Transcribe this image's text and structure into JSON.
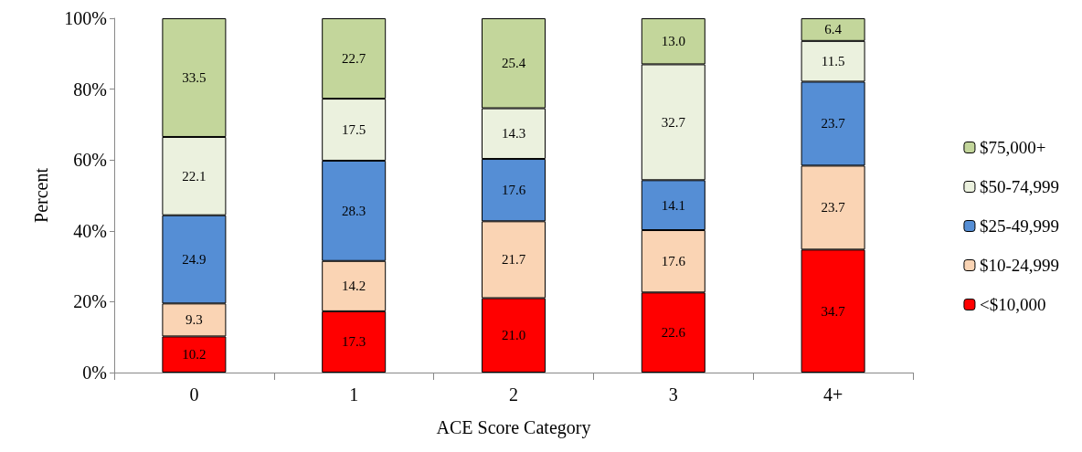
{
  "chart_data": {
    "type": "bar",
    "stacked": true,
    "xlabel": "ACE Score Category",
    "ylabel": "Percent",
    "categories": [
      "0",
      "1",
      "2",
      "3",
      "4+"
    ],
    "ylim": [
      0,
      100
    ],
    "yticks": [
      {
        "value": 0,
        "label": "0%"
      },
      {
        "value": 20,
        "label": "20%"
      },
      {
        "value": 40,
        "label": "40%"
      },
      {
        "value": 60,
        "label": "60%"
      },
      {
        "value": 80,
        "label": "80%"
      },
      {
        "value": 100,
        "label": "100%"
      }
    ],
    "grid": false,
    "legend": "right",
    "series": [
      {
        "name": "<$10,000",
        "color": "#ff0000",
        "values": [
          10.2,
          17.3,
          21.0,
          22.6,
          34.7
        ],
        "value_labels": [
          "10.2",
          "17.3",
          "21.0",
          "22.6",
          "34.7"
        ]
      },
      {
        "name": "$10-24,999",
        "color": "#fad4b4",
        "values": [
          9.3,
          14.2,
          21.7,
          17.6,
          23.7
        ],
        "value_labels": [
          "9.3",
          "14.2",
          "21.7",
          "17.6",
          "23.7"
        ]
      },
      {
        "name": "$25-49,999",
        "color": "#558ed5",
        "values": [
          24.9,
          28.3,
          17.6,
          14.1,
          23.7
        ],
        "value_labels": [
          "24.9",
          "28.3",
          "17.6",
          "14.1",
          "23.7"
        ]
      },
      {
        "name": "$50-74,999",
        "color": "#ebf1de",
        "values": [
          22.1,
          17.5,
          14.3,
          32.7,
          11.5
        ],
        "value_labels": [
          "22.1",
          "17.5",
          "14.3",
          "32.7",
          "11.5"
        ]
      },
      {
        "name": "$75,000+",
        "color": "#c3d69b",
        "values": [
          33.5,
          22.7,
          25.4,
          13.0,
          6.4
        ],
        "value_labels": [
          "33.5",
          "22.7",
          "25.4",
          "13.0",
          "6.4"
        ]
      }
    ]
  }
}
